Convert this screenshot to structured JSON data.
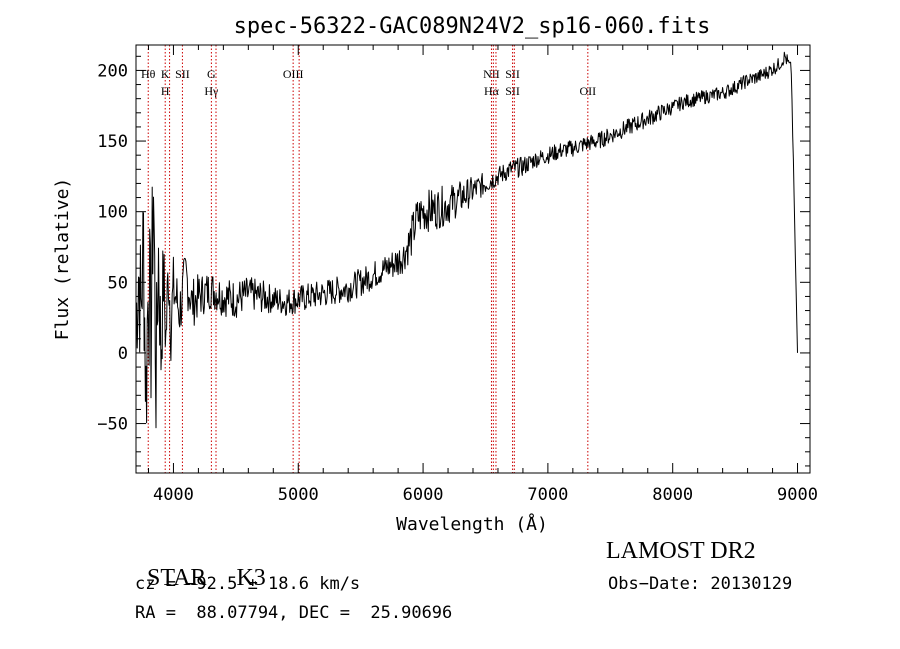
{
  "chart_data": {
    "type": "line",
    "title": "spec-56322-GAC089N24V2_sp16-060.fits",
    "xlabel": "Wavelength (Å)",
    "ylabel": "Flux (relative)",
    "xlim": [
      3700,
      9100
    ],
    "ylim": [
      -85,
      218
    ],
    "x_ticks": [
      4000,
      5000,
      6000,
      7000,
      8000,
      9000
    ],
    "y_ticks": [
      -50,
      0,
      50,
      100,
      150,
      200
    ],
    "grid": false,
    "line_color": "#000000",
    "marker_color": "#cc0000",
    "series": [
      {
        "x": [
          3700,
          3720,
          3740,
          3760,
          3780,
          3800,
          3820,
          3840,
          3860,
          3880,
          3900,
          3920,
          3940,
          3960,
          3980,
          4000,
          4050,
          4100,
          4150,
          4200,
          4300,
          4400,
          4500,
          4600,
          4700,
          4800,
          4900,
          5000,
          5100,
          5200,
          5300,
          5400,
          5500,
          5600,
          5700,
          5800,
          5850,
          5900,
          5950,
          6000,
          6100,
          6200,
          6300,
          6400,
          6500,
          6600,
          6700,
          6800,
          6900,
          7000,
          7100,
          7200,
          7300,
          7400,
          7500,
          7600,
          7700,
          7800,
          7900,
          8000,
          8100,
          8200,
          8300,
          8400,
          8500,
          8600,
          8700,
          8800,
          8850,
          8900,
          8950,
          9000
        ],
        "y": [
          20,
          60,
          30,
          80,
          -30,
          60,
          10,
          120,
          -20,
          70,
          0,
          55,
          10,
          60,
          20,
          45,
          30,
          55,
          35,
          40,
          45,
          40,
          38,
          42,
          40,
          38,
          36,
          38,
          40,
          42,
          44,
          46,
          50,
          55,
          60,
          65,
          70,
          80,
          95,
          100,
          102,
          105,
          110,
          115,
          120,
          125,
          130,
          132,
          137,
          140,
          143,
          145,
          148,
          150,
          154,
          158,
          162,
          166,
          170,
          174,
          178,
          180,
          182,
          184,
          188,
          193,
          196,
          201,
          204,
          210,
          200,
          0
        ],
        "jitter": [
          40,
          55,
          50,
          60,
          60,
          65,
          55,
          60,
          50,
          45,
          40,
          35,
          30,
          30,
          28,
          25,
          22,
          20,
          18,
          16,
          14,
          14,
          14,
          12,
          12,
          10,
          10,
          10,
          10,
          10,
          10,
          10,
          10,
          10,
          10,
          12,
          12,
          15,
          15,
          15,
          15,
          14,
          12,
          10,
          8,
          7,
          7,
          7,
          6,
          6,
          6,
          6,
          6,
          6,
          6,
          6,
          6,
          6,
          6,
          5,
          5,
          5,
          5,
          5,
          5,
          5,
          5,
          5,
          5,
          5,
          5,
          0
        ]
      }
    ],
    "lines": [
      {
        "x": 3798,
        "top": "Hθ",
        "bottom": ""
      },
      {
        "x": 3934,
        "top": "K",
        "bottom": "H"
      },
      {
        "x": 3969,
        "top": "",
        "bottom": ""
      },
      {
        "x": 4072,
        "top": "SII",
        "bottom": ""
      },
      {
        "x": 4304,
        "top": "G",
        "bottom": "Hγ"
      },
      {
        "x": 4341,
        "top": "",
        "bottom": ""
      },
      {
        "x": 4959,
        "top": "OIII",
        "bottom": ""
      },
      {
        "x": 5007,
        "top": "",
        "bottom": ""
      },
      {
        "x": 6548,
        "top": "NII",
        "bottom": "Hα"
      },
      {
        "x": 6563,
        "top": "",
        "bottom": ""
      },
      {
        "x": 6584,
        "top": "",
        "bottom": ""
      },
      {
        "x": 6717,
        "top": "SII",
        "bottom": "SII"
      },
      {
        "x": 6731,
        "top": "",
        "bottom": ""
      },
      {
        "x": 7320,
        "top": "",
        "bottom": "OII"
      }
    ]
  },
  "info": {
    "class": "STAR",
    "subclass": "K3",
    "survey": "LAMOST DR2",
    "cz": "cz = −92.5 ± 18.6 km/s",
    "obs_date": "Obs−Date: 20130129",
    "coords": "RA =  88.07794, DEC =  25.90696"
  }
}
